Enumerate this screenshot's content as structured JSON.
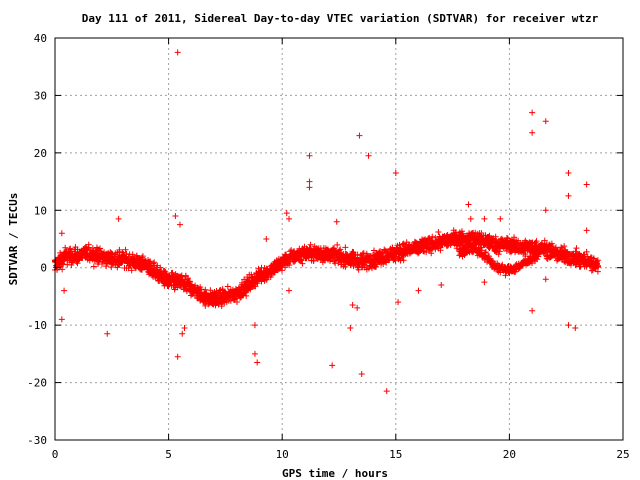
{
  "chart_data": {
    "type": "scatter",
    "title": "Day 111 of 2011, Sidereal Day-to-day VTEC variation (SDTVAR) for receiver wtzr",
    "xlabel": "GPS time / hours",
    "ylabel": "SDTVAR / TECUs",
    "xlim": [
      0,
      25
    ],
    "ylim": [
      -30,
      40
    ],
    "xticks": [
      0,
      5,
      10,
      15,
      20,
      25
    ],
    "yticks": [
      -30,
      -20,
      -10,
      0,
      10,
      20,
      30,
      40
    ],
    "grid": true,
    "marker": "+",
    "series": [
      {
        "name": "SDTVAR",
        "color": "#ff0000",
        "trend": [
          [
            0.0,
            0.5
          ],
          [
            0.5,
            2.0
          ],
          [
            1.0,
            2.0
          ],
          [
            1.5,
            2.5
          ],
          [
            2.0,
            2.0
          ],
          [
            2.5,
            1.5
          ],
          [
            3.0,
            1.5
          ],
          [
            3.5,
            1.0
          ],
          [
            4.0,
            0.5
          ],
          [
            4.5,
            -1.0
          ],
          [
            5.0,
            -2.5
          ],
          [
            5.5,
            -2.5
          ],
          [
            6.0,
            -3.5
          ],
          [
            6.5,
            -5.0
          ],
          [
            7.0,
            -5.5
          ],
          [
            7.5,
            -5.0
          ],
          [
            8.0,
            -4.5
          ],
          [
            8.5,
            -3.0
          ],
          [
            9.0,
            -1.5
          ],
          [
            9.5,
            -0.5
          ],
          [
            10.0,
            1.0
          ],
          [
            10.5,
            2.0
          ],
          [
            11.0,
            2.5
          ],
          [
            11.5,
            2.5
          ],
          [
            12.0,
            2.5
          ],
          [
            12.5,
            2.0
          ],
          [
            13.0,
            1.5
          ],
          [
            13.5,
            1.0
          ],
          [
            14.0,
            1.5
          ],
          [
            14.5,
            2.0
          ],
          [
            15.0,
            2.5
          ],
          [
            15.5,
            3.0
          ],
          [
            16.0,
            3.5
          ],
          [
            16.5,
            4.0
          ],
          [
            17.0,
            4.5
          ],
          [
            17.5,
            5.0
          ],
          [
            18.0,
            5.0
          ],
          [
            18.5,
            5.0
          ],
          [
            19.0,
            4.5
          ],
          [
            19.5,
            4.0
          ],
          [
            20.0,
            4.0
          ],
          [
            20.5,
            3.5
          ],
          [
            21.0,
            3.5
          ],
          [
            21.5,
            3.5
          ],
          [
            22.0,
            2.5
          ],
          [
            22.5,
            2.0
          ],
          [
            23.0,
            1.5
          ],
          [
            23.5,
            1.0
          ],
          [
            23.9,
            0.5
          ]
        ],
        "secondary_trend": [
          [
            17.8,
            2.5
          ],
          [
            18.3,
            3.5
          ],
          [
            18.8,
            2.5
          ],
          [
            19.3,
            0.5
          ],
          [
            19.8,
            -0.5
          ],
          [
            20.3,
            0.0
          ],
          [
            20.8,
            1.0
          ],
          [
            21.3,
            2.5
          ]
        ],
        "outliers": [
          [
            5.4,
            37.5
          ],
          [
            0.3,
            6.0
          ],
          [
            0.4,
            -4.0
          ],
          [
            0.3,
            -9.0
          ],
          [
            2.3,
            -11.5
          ],
          [
            2.8,
            8.5
          ],
          [
            5.4,
            -15.5
          ],
          [
            5.3,
            9.0
          ],
          [
            5.5,
            7.5
          ],
          [
            5.7,
            -10.5
          ],
          [
            5.6,
            -11.5
          ],
          [
            8.8,
            -10.0
          ],
          [
            8.8,
            -15.0
          ],
          [
            8.9,
            -16.5
          ],
          [
            9.3,
            5.0
          ],
          [
            10.2,
            9.5
          ],
          [
            10.3,
            8.5
          ],
          [
            10.3,
            -4.0
          ],
          [
            11.2,
            19.5
          ],
          [
            11.2,
            15.0
          ],
          [
            11.2,
            14.0
          ],
          [
            12.2,
            -17.0
          ],
          [
            12.4,
            8.0
          ],
          [
            13.0,
            -10.5
          ],
          [
            13.1,
            -6.5
          ],
          [
            13.3,
            -7.0
          ],
          [
            13.4,
            23.0
          ],
          [
            13.5,
            -18.5
          ],
          [
            13.8,
            19.5
          ],
          [
            14.6,
            -21.5
          ],
          [
            15.0,
            16.5
          ],
          [
            15.1,
            -6.0
          ],
          [
            16.0,
            -4.0
          ],
          [
            17.0,
            -3.0
          ],
          [
            18.2,
            11.0
          ],
          [
            18.3,
            8.5
          ],
          [
            18.9,
            8.5
          ],
          [
            18.9,
            -2.5
          ],
          [
            19.6,
            8.5
          ],
          [
            21.0,
            27.0
          ],
          [
            21.0,
            23.5
          ],
          [
            21.0,
            -7.5
          ],
          [
            21.6,
            25.5
          ],
          [
            21.6,
            10.0
          ],
          [
            21.6,
            -2.0
          ],
          [
            22.6,
            16.5
          ],
          [
            22.6,
            12.5
          ],
          [
            22.6,
            -10.0
          ],
          [
            22.9,
            -10.5
          ],
          [
            23.4,
            14.5
          ],
          [
            23.4,
            6.5
          ]
        ]
      }
    ]
  }
}
